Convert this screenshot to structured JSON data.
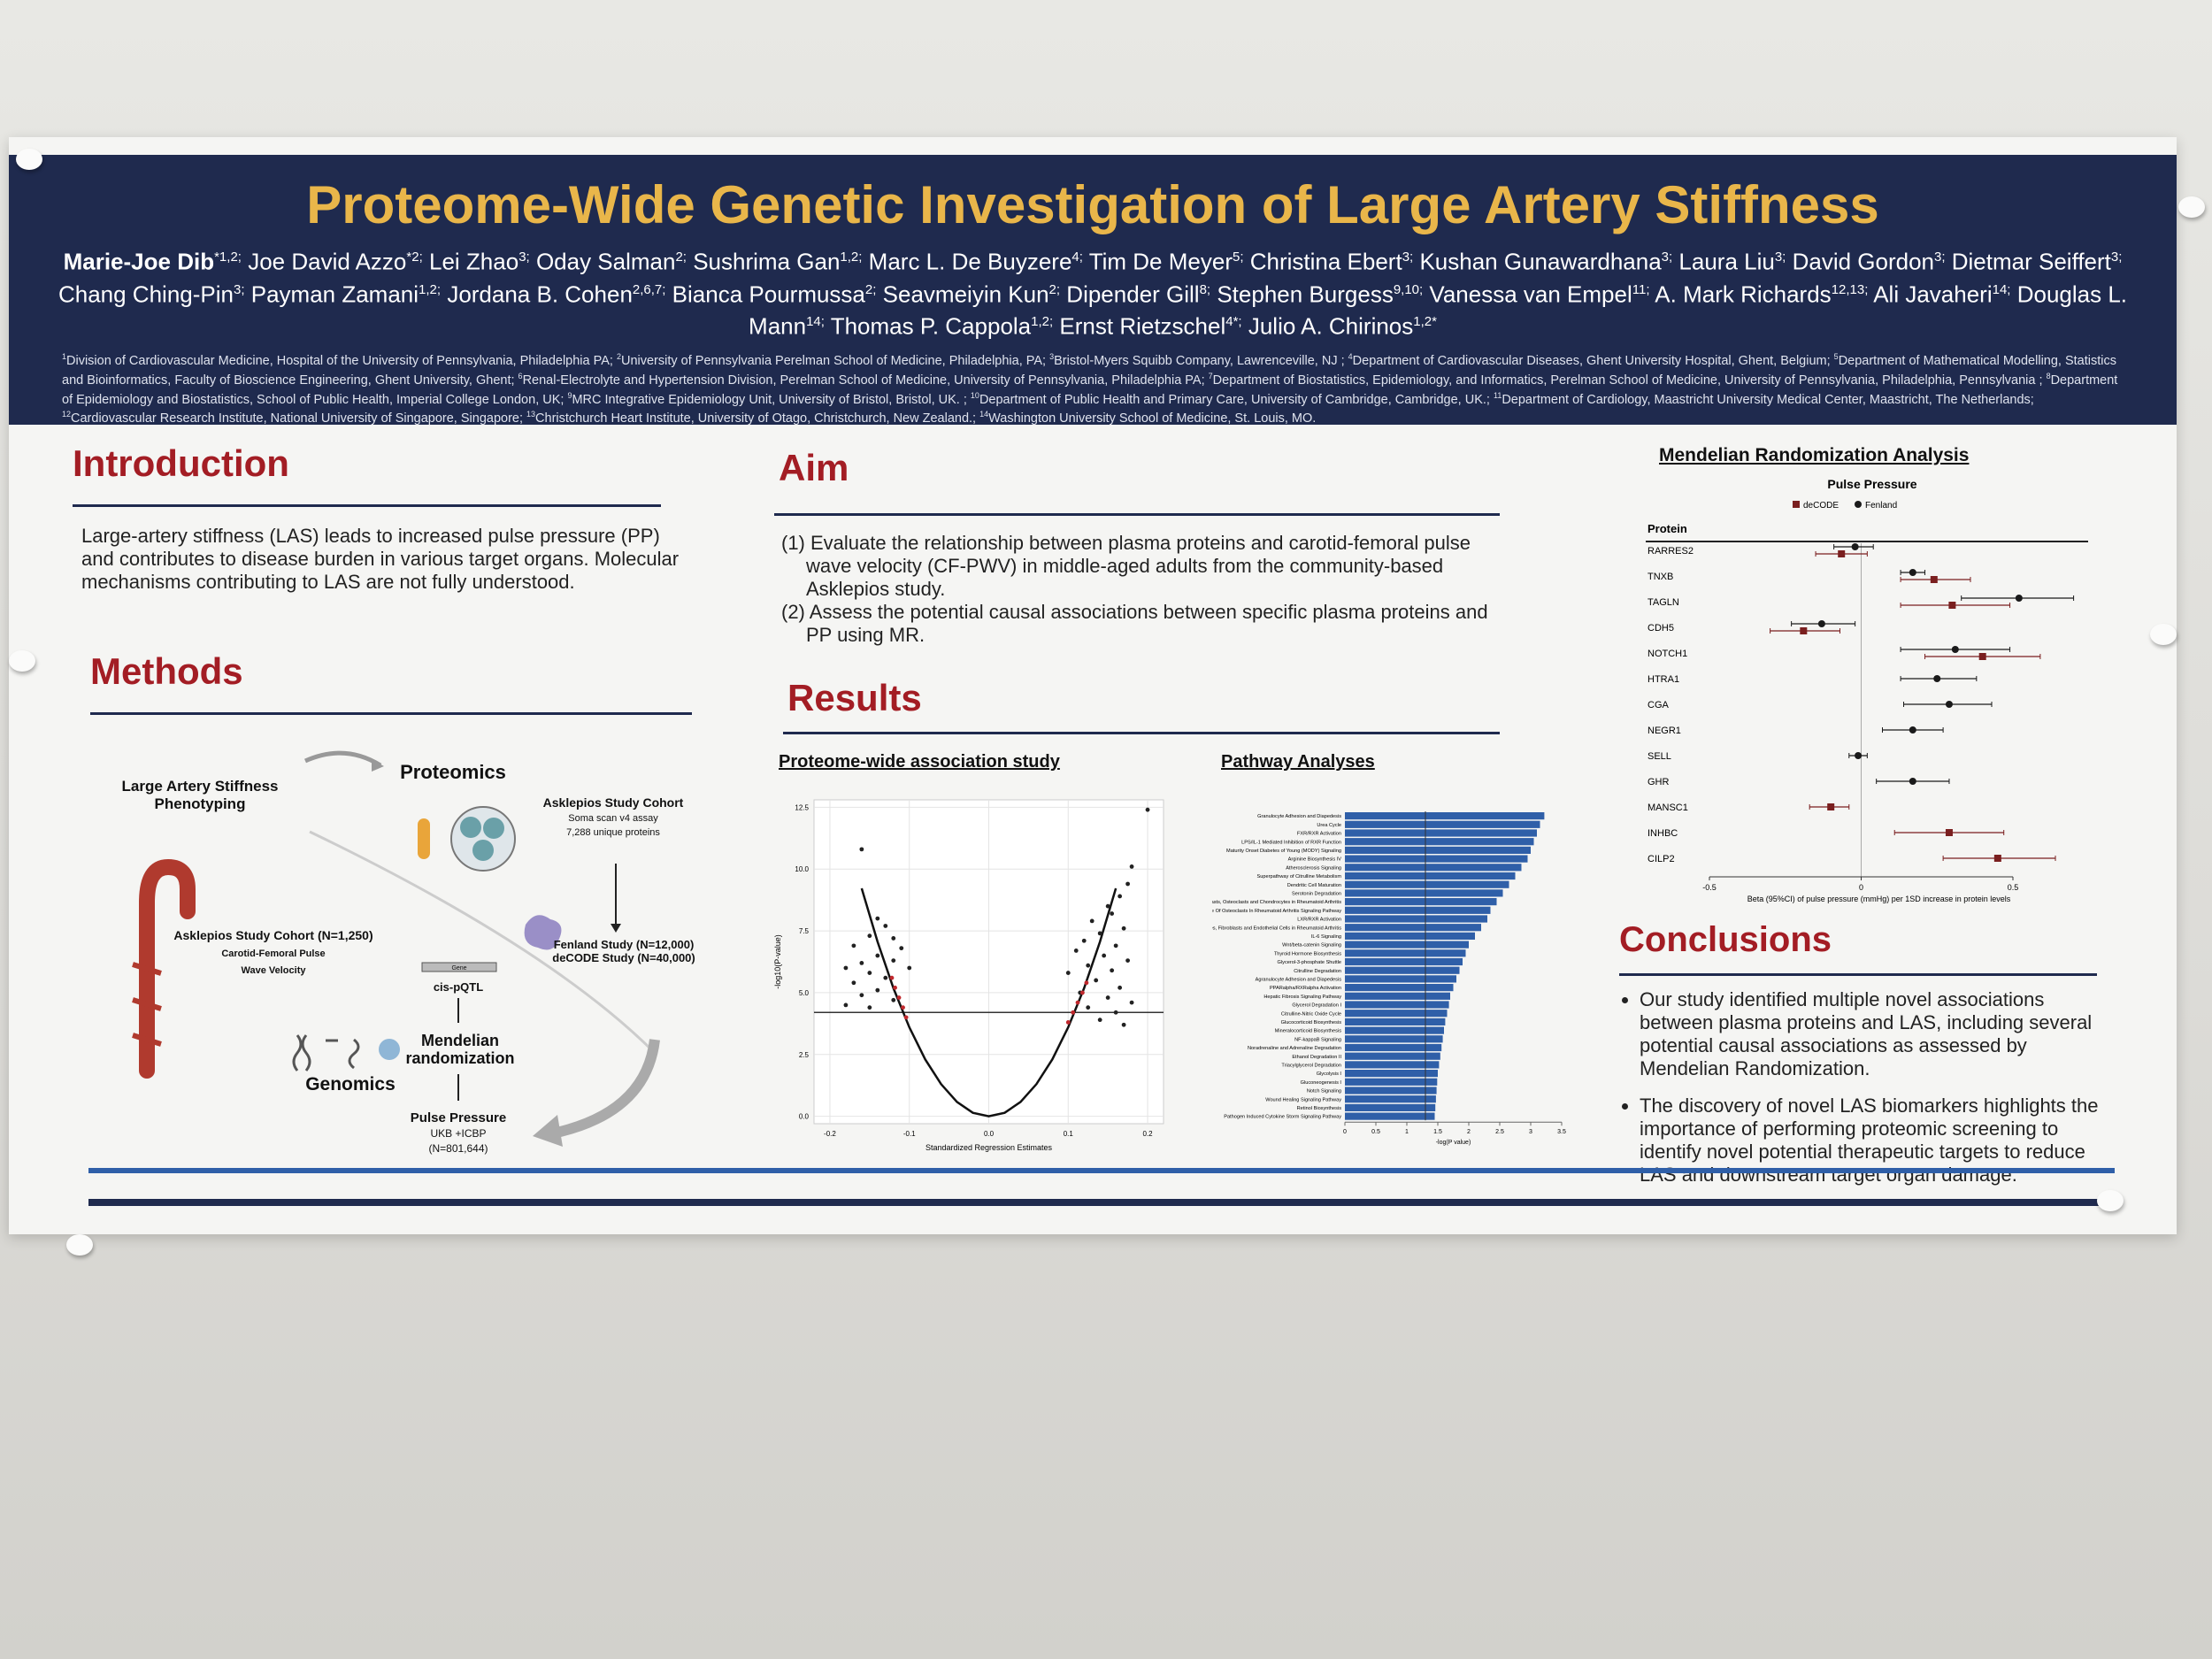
{
  "header": {
    "title": "Proteome-Wide Genetic Investigation of Large Artery Stiffness",
    "authors": [
      {
        "name": "Marie-Joe Dib",
        "aff": "*1,2;"
      },
      {
        "name": "Joe David Azzo",
        "aff": "*2;"
      },
      {
        "name": "Lei Zhao",
        "aff": "3;"
      },
      {
        "name": "Oday Salman",
        "aff": "2;"
      },
      {
        "name": "Sushrima Gan",
        "aff": "1,2;"
      },
      {
        "name": "Marc L. De Buyzere",
        "aff": "4;"
      },
      {
        "name": "Tim De Meyer",
        "aff": "5;"
      },
      {
        "name": "Christina Ebert",
        "aff": "3;"
      },
      {
        "name": "Kushan Gunawardhana",
        "aff": "3;"
      },
      {
        "name": "Laura Liu",
        "aff": "3;"
      },
      {
        "name": "David Gordon",
        "aff": "3;"
      },
      {
        "name": "Dietmar Seiffert",
        "aff": "3;"
      },
      {
        "name": "Chang Ching-Pin",
        "aff": "3;"
      },
      {
        "name": "Payman Zamani",
        "aff": "1,2;"
      },
      {
        "name": "Jordana B. Cohen",
        "aff": "2,6,7;"
      },
      {
        "name": "Bianca Pourmussa",
        "aff": "2;"
      },
      {
        "name": "Seavmeiyin Kun",
        "aff": "2;"
      },
      {
        "name": "Dipender Gill",
        "aff": "8;"
      },
      {
        "name": "Stephen Burgess",
        "aff": "9,10;"
      },
      {
        "name": "Vanessa van Empel",
        "aff": "11;"
      },
      {
        "name": "A. Mark Richards",
        "aff": "12,13;"
      },
      {
        "name": "Ali Javaheri",
        "aff": "14;"
      },
      {
        "name": "Douglas L. Mann",
        "aff": "14;"
      },
      {
        "name": "Thomas P. Cappola",
        "aff": "1,2;"
      },
      {
        "name": "Ernst Rietzschel",
        "aff": "4*;"
      },
      {
        "name": "Julio A. Chirinos",
        "aff": "1,2*"
      }
    ],
    "affiliations": [
      {
        "sup": "1",
        "text": "Division of Cardiovascular Medicine, Hospital of the University of Pennsylvania, Philadelphia PA;"
      },
      {
        "sup": "2",
        "text": "University of Pennsylvania Perelman School of Medicine, Philadelphia, PA;"
      },
      {
        "sup": "3",
        "text": "Bristol-Myers Squibb Company, Lawrenceville, NJ ;"
      },
      {
        "sup": "4",
        "text": "Department of Cardiovascular Diseases, Ghent University Hospital, Ghent, Belgium;"
      },
      {
        "sup": "5",
        "text": "Department of Mathematical Modelling, Statistics and Bioinformatics, Faculty of Bioscience Engineering, Ghent University, Ghent;"
      },
      {
        "sup": "6",
        "text": "Renal-Electrolyte and Hypertension Division, Perelman School of Medicine, University of Pennsylvania, Philadelphia PA;"
      },
      {
        "sup": "7",
        "text": "Department of Biostatistics, Epidemiology, and Informatics, Perelman School of Medicine, University of Pennsylvania, Philadelphia, Pennsylvania ;"
      },
      {
        "sup": "8",
        "text": "Department of Epidemiology and Biostatistics, School of Public Health, Imperial College London, UK;"
      },
      {
        "sup": "9",
        "text": "MRC Integrative Epidemiology Unit, University of Bristol, Bristol, UK. ;"
      },
      {
        "sup": "10",
        "text": "Department of Public Health and Primary Care, University of Cambridge, Cambridge, UK.;"
      },
      {
        "sup": "11",
        "text": "Department of Cardiology, Maastricht University Medical Center, Maastricht, The Netherlands;"
      },
      {
        "sup": "12",
        "text": "Cardiovascular Research Institute, National University of Singapore, Singapore;"
      },
      {
        "sup": "13",
        "text": "Christchurch Heart Institute, University of Otago, Christchurch, New Zealand.;"
      },
      {
        "sup": "14",
        "text": "Washington University School of Medicine, St. Louis, MO."
      }
    ]
  },
  "introduction": {
    "heading": "Introduction",
    "text": "Large-artery stiffness (LAS) leads to increased pulse pressure (PP) and contributes to disease burden in various target organs. Molecular mechanisms contributing to LAS are not fully understood."
  },
  "methods": {
    "heading": "Methods",
    "diagram": {
      "phenotyping": [
        "Large Artery Stiffness",
        "Phenotyping"
      ],
      "proteomics": "Proteomics",
      "cohort": [
        "Asklepios Study Cohort",
        "Soma scan v4 assay",
        "7,288 unique proteins"
      ],
      "validation": [
        "Fenland Study (N=12,000)",
        "deCODE Study (N=40,000)"
      ],
      "asklepios": [
        "Asklepios Study Cohort (N=1,250)",
        "Carotid-Femoral Pulse",
        "Wave Velocity"
      ],
      "gene": "Gene",
      "cispqtl": "cis-pQTL",
      "mr": [
        "Mendelian",
        "randomization"
      ],
      "genomics": "Genomics",
      "outcome": [
        "Pulse Pressure",
        "UKB +ICBP",
        "(N=801,644)"
      ]
    }
  },
  "aim": {
    "heading": "Aim",
    "items": [
      "(1) Evaluate the relationship between plasma proteins and carotid-femoral pulse wave velocity (CF-PWV) in middle-aged adults from the community-based Asklepios study.",
      "(2) Assess the potential causal associations between specific plasma proteins and PP using MR."
    ]
  },
  "results": {
    "heading": "Results"
  },
  "volcano": {
    "title": "Proteome-wide association study",
    "xlabel": "Standardized Regression Estimates",
    "ylabel": "-log10(P-value)",
    "xlim": [
      -0.22,
      0.22
    ],
    "ylim": [
      -0.3,
      12.8
    ],
    "xticks": [
      -0.2,
      -0.1,
      {
        "value": 0,
        "label": "0.0"
      },
      0.1,
      0.2
    ],
    "yticks": [
      {
        "value": 0,
        "label": "0.0"
      },
      2.5,
      {
        "value": 5,
        "label": "5.0"
      },
      7.5,
      {
        "value": 10,
        "label": "10.0"
      },
      12.5
    ],
    "threshold": 4.2,
    "curve": {
      "color": "#111111",
      "x": [
        -0.16,
        -0.14,
        -0.12,
        -0.1,
        -0.08,
        -0.06,
        -0.04,
        -0.02,
        0,
        0.02,
        0.04,
        0.06,
        0.08,
        0.1,
        0.12,
        0.14,
        0.16
      ],
      "y": [
        9.22,
        7.06,
        5.18,
        3.6,
        2.3,
        1.3,
        0.58,
        0.14,
        0,
        0.14,
        0.58,
        1.3,
        2.3,
        3.6,
        5.18,
        7.06,
        9.22
      ]
    },
    "points": {
      "color": "#222222",
      "x": [
        -0.16,
        -0.14,
        -0.13,
        -0.15,
        -0.12,
        -0.17,
        -0.11,
        -0.14,
        -0.16,
        -0.12,
        -0.18,
        -0.15,
        -0.13,
        -0.1,
        -0.17,
        -0.14,
        -0.16,
        -0.12,
        -0.18,
        -0.15,
        0.2,
        0.18,
        0.175,
        0.165,
        0.15,
        0.155,
        0.13,
        0.17,
        0.14,
        0.12,
        0.16,
        0.11,
        0.145,
        0.175,
        0.125,
        0.155,
        0.1,
        0.135,
        0.165,
        0.115,
        0.15,
        0.18,
        0.125,
        0.16,
        0.14,
        0.17
      ],
      "y": [
        10.8,
        8.0,
        7.7,
        7.3,
        7.2,
        6.9,
        6.8,
        6.5,
        6.2,
        6.3,
        6.0,
        5.8,
        5.6,
        6.0,
        5.4,
        5.1,
        4.9,
        4.7,
        4.5,
        4.4,
        12.4,
        10.1,
        9.4,
        8.9,
        8.5,
        8.2,
        7.9,
        7.6,
        7.4,
        7.1,
        6.9,
        6.7,
        6.5,
        6.3,
        6.1,
        5.9,
        5.8,
        5.5,
        5.2,
        5.0,
        4.8,
        4.6,
        4.4,
        4.2,
        3.9,
        3.7
      ]
    },
    "highlight": {
      "color": "#c0282d",
      "x": [
        -0.118,
        -0.113,
        -0.108,
        -0.122,
        -0.104,
        0.112,
        0.118,
        0.106,
        0.123,
        0.1
      ],
      "y": [
        5.2,
        4.8,
        4.4,
        5.6,
        4.0,
        4.6,
        5.0,
        4.2,
        5.4,
        3.8
      ]
    }
  },
  "pathway": {
    "title": "Pathway Analyses",
    "xlabel": "-log(P value)",
    "color": "#2f5fa8",
    "xlim": [
      0,
      3.5
    ],
    "xticks": [
      0,
      0.5,
      1,
      1.5,
      2,
      2.5,
      3,
      3.5
    ],
    "threshold": 1.3,
    "names": [
      "Granulocyte Adhesion and Diapedesis",
      "Urea Cycle",
      "FXR/RXR Activation",
      "LPS/IL-1 Mediated Inhibition of RXR Function",
      "Maturity Onset Diabetes of Young (MODY) Signaling",
      "Arginine Biosynthesis IV",
      "Atherosclerosis Signaling",
      "Superpathway of Citrulline Metabolism",
      "Dendritic Cell Maturation",
      "Serotonin Degradation",
      "Role of Osteoblasts, Osteoclasts and Chondrocytes in Rheumatoid Arthritis",
      "Role Of Osteoclasts In Rheumatoid Arthritis Signaling Pathway",
      "LXR/RXR Activation",
      "Role of Macrophages, Fibroblasts and Endothelial Cells in Rheumatoid Arthritis",
      "IL-6 Signaling",
      "Wnt/beta-catenin Signaling",
      "Thyroid Hormone Biosynthesis",
      "Glycerol-3-phosphate Shuttle",
      "Citrulline Degradation",
      "Agranulocyte Adhesion and Diapedesis",
      "PPARalpha/RXRalpha Activation",
      "Hepatic Fibrosis Signaling Pathway",
      "Glycerol Degradation I",
      "Citrulline-Nitric Oxide Cycle",
      "Glucocorticoid Biosynthesis",
      "Mineralocorticoid Biosynthesis",
      "NF-kappaB Signaling",
      "Noradrenaline and Adrenaline Degradation",
      "Ethanol Degradation II",
      "Triacylglycerol Degradation",
      "Glycolysis I",
      "Gluconeogenesis I",
      "Notch Signaling",
      "Wound Healing Signaling Pathway",
      "Retinol Biosynthesis",
      "Pathogen Induced Cytokine Storm Signaling Pathway"
    ],
    "values": [
      3.22,
      3.15,
      3.1,
      3.05,
      3.0,
      2.95,
      2.85,
      2.75,
      2.65,
      2.55,
      2.45,
      2.35,
      2.3,
      2.2,
      2.1,
      2.0,
      1.95,
      1.9,
      1.85,
      1.8,
      1.75,
      1.7,
      1.68,
      1.65,
      1.62,
      1.6,
      1.58,
      1.56,
      1.54,
      1.52,
      1.5,
      1.49,
      1.48,
      1.47,
      1.46,
      1.45
    ]
  },
  "forest": {
    "title": "Mendelian Randomization Analysis",
    "subtitle": "Pulse Pressure",
    "column": "Protein",
    "xlabel": "Beta (95%CI) of pulse pressure (mmHg) per 1SD increase in protein levels",
    "xlim": [
      -0.5,
      0.5
    ],
    "xticks": [
      -0.5,
      0,
      0.5
    ],
    "proteins": [
      "RARRES2",
      "TNXB",
      "TAGLN",
      "CDH5",
      "NOTCH1",
      "HTRA1",
      "CGA",
      "NEGR1",
      "SELL",
      "GHR",
      "MANSC1",
      "INHBC",
      "CILP2"
    ],
    "series": [
      {
        "name": "deCODE",
        "marker": "square",
        "color": "#7a1f1f",
        "values": [
          -0.065,
          0.24,
          0.3,
          -0.19,
          0.4,
          null,
          null,
          null,
          null,
          null,
          -0.1,
          0.29,
          0.45
        ],
        "lo": [
          -0.15,
          0.13,
          0.13,
          -0.3,
          0.21,
          null,
          null,
          null,
          null,
          null,
          -0.17,
          0.11,
          0.27
        ],
        "hi": [
          0.02,
          0.36,
          0.49,
          -0.07,
          0.59,
          null,
          null,
          null,
          null,
          null,
          -0.04,
          0.47,
          0.64
        ]
      },
      {
        "name": "Fenland",
        "marker": "circle",
        "color": "#1a1a1a",
        "values": [
          -0.02,
          0.17,
          0.52,
          -0.13,
          0.31,
          0.25,
          0.29,
          0.17,
          -0.01,
          0.17,
          null,
          null,
          null
        ],
        "lo": [
          -0.09,
          0.13,
          0.33,
          -0.23,
          0.13,
          0.13,
          0.14,
          0.07,
          -0.04,
          0.05,
          null,
          null,
          null
        ],
        "hi": [
          0.04,
          0.21,
          0.7,
          -0.02,
          0.49,
          0.38,
          0.43,
          0.27,
          0.02,
          0.29,
          null,
          null,
          null
        ]
      }
    ]
  },
  "conclusions": {
    "heading": "Conclusions",
    "items": [
      "Our study identified multiple novel associations between plasma proteins and LAS, including several potential causal associations as assessed by Mendelian Randomization.",
      "The discovery of novel LAS biomarkers highlights the importance of performing proteomic screening to identify novel potential therapeutic targets to reduce LAS and downstream target organ damage."
    ]
  }
}
